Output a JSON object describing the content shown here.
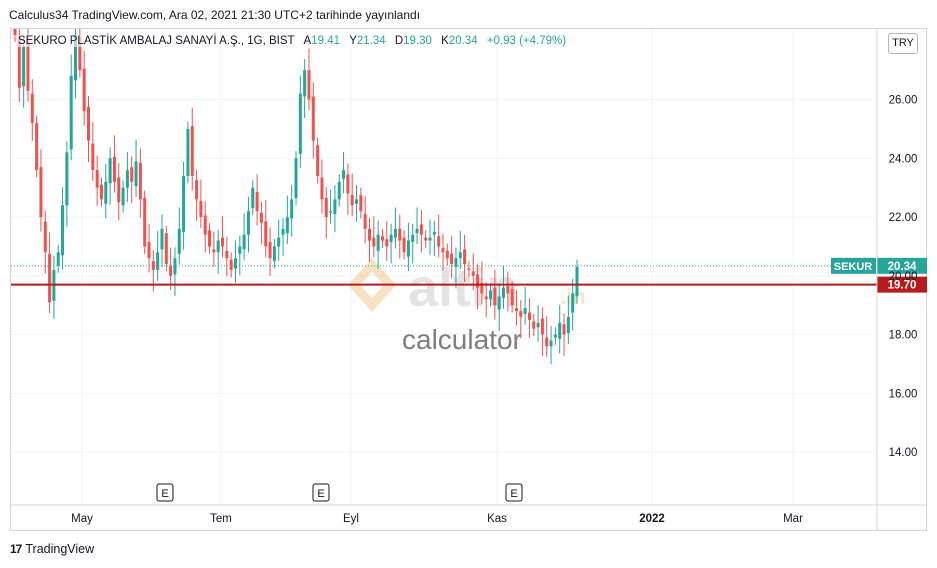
{
  "caption": "Calculus34 TradingView.com, Ara 02, 2021 21:30 UTC+2 tarihinde yayınlandı",
  "legend": {
    "symbol": "SEKURO PLASTİK AMBALAJ SANAYİ A.Ş., 1G, BIST",
    "open_label": "A",
    "open_value": "19.41",
    "high_label": "Y",
    "high_value": "21.34",
    "low_label": "D",
    "low_value": "19.30",
    "close_label": "K",
    "close_value": "20.34",
    "change": "+0.93 (+4.79%)"
  },
  "currency_button": "TRY",
  "footer_brand": "TradingView",
  "footer_icon": "tradingview-logo-icon",
  "colors": {
    "up": "#26a69a",
    "down": "#ef5350",
    "level": "#b71c1c",
    "last": "#26a69a"
  },
  "chart_data": {
    "type": "candlestick",
    "x_labels": [
      "May",
      "Tem",
      "Eyl",
      "Kas",
      "2022",
      "Mar"
    ],
    "y_ticks": [
      "26.00",
      "24.00",
      "22.00",
      "20.00",
      "18.00",
      "16.00",
      "14.00"
    ],
    "ylim": [
      12.2,
      28.4
    ],
    "last_price": {
      "label": "SEKUR",
      "value": 20.34
    },
    "horizontal_level": {
      "label": "19.70",
      "value": 19.7
    },
    "earnings_markers": [
      "E",
      "E",
      "E"
    ],
    "watermark": {
      "brand": "altin",
      "suffix": ".in",
      "sub": "calculator"
    },
    "closes": [
      28.2,
      26.4,
      27.8,
      26.3,
      25.2,
      23.6,
      22.0,
      20.8,
      19.1,
      20.2,
      20.8,
      22.4,
      24.2,
      26.8,
      28.2,
      27.0,
      25.6,
      24.6,
      23.6,
      23.0,
      22.6,
      23.2,
      24.0,
      23.2,
      22.5,
      23.0,
      23.6,
      23.2,
      23.9,
      22.6,
      21.0,
      20.6,
      20.2,
      20.8,
      21.6,
      20.4,
      20.0,
      20.6,
      21.6,
      23.4,
      25.0,
      23.4,
      22.6,
      22.0,
      21.4,
      21.0,
      20.8,
      21.2,
      21.0,
      20.6,
      20.2,
      20.6,
      21.0,
      21.4,
      22.2,
      23.0,
      22.2,
      21.8,
      21.0,
      20.6,
      21.0,
      21.3,
      21.6,
      22.0,
      22.6,
      24.0,
      26.2,
      27.0,
      26.0,
      24.6,
      23.4,
      22.6,
      22.0,
      22.2,
      22.6,
      23.2,
      23.6,
      22.8,
      22.4,
      22.6,
      22.2,
      21.6,
      21.2,
      21.0,
      21.4,
      21.2,
      21.0,
      21.4,
      21.6,
      21.2,
      20.8,
      21.2,
      21.4,
      21.6,
      21.4,
      21.2,
      21.3,
      21.5,
      21.0,
      20.8,
      20.6,
      20.4,
      20.6,
      20.8,
      20.4,
      20.2,
      20.0,
      19.6,
      19.4,
      19.2,
      19.5,
      19.0,
      19.3,
      19.6,
      19.4,
      19.0,
      18.8,
      18.6,
      18.9,
      18.5,
      18.2,
      18.4,
      18.0,
      17.6,
      17.8,
      18.0,
      18.4,
      18.0,
      18.6,
      19.4,
      20.3
    ]
  }
}
